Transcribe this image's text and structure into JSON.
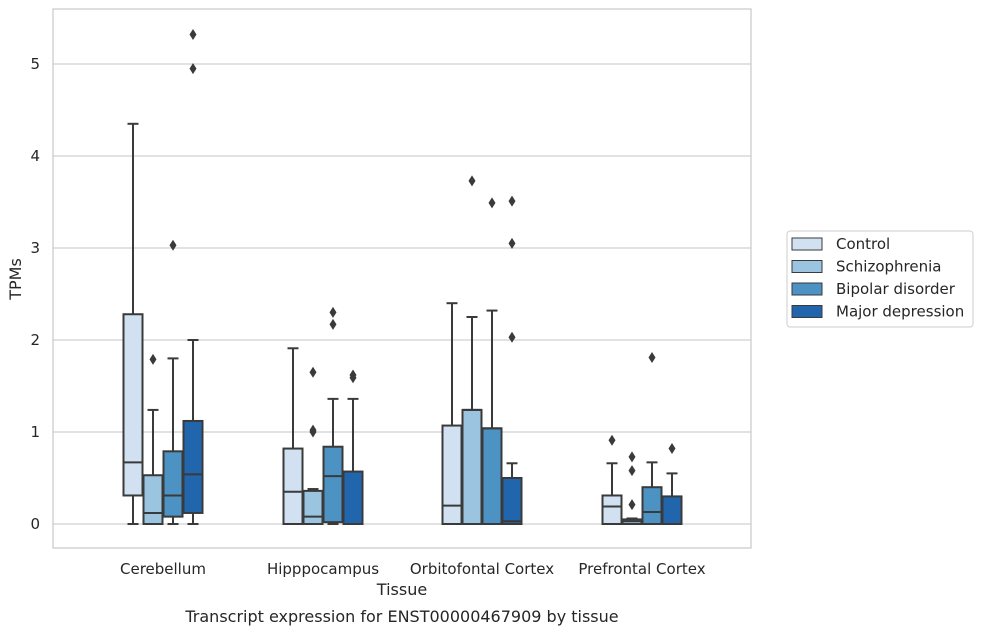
{
  "caption": "Transcript expression for ENST00000467909 by tissue",
  "colors": {
    "Control": "#d2e1f1",
    "Schizophrenia": "#9ac4df",
    "Bipolar disorder": "#4c92c3",
    "Major depression": "#2166ac",
    "line": "#3a3a3a",
    "grid": "#d0d0d0",
    "frame": "#c8c8c8"
  },
  "chart_data": {
    "type": "box",
    "xlabel": "Tissue",
    "ylabel": "TPMs",
    "ylim": [
      -0.25,
      5.6
    ],
    "yticks": [
      0,
      1,
      2,
      3,
      4,
      5
    ],
    "grid": "horizontal",
    "legend_position": "right",
    "categories": [
      "Cerebellum",
      "Hipppocampus",
      "Orbitofontal Cortex",
      "Prefrontal Cortex"
    ],
    "series": [
      {
        "name": "Control",
        "boxes": [
          {
            "whisker_low": 0,
            "q1": 0.31,
            "median": 0.67,
            "q3": 2.28,
            "whisker_high": 4.35,
            "outliers": []
          },
          {
            "whisker_low": 0,
            "q1": 0,
            "median": 0.35,
            "q3": 0.82,
            "whisker_high": 1.91,
            "outliers": []
          },
          {
            "whisker_low": 0,
            "q1": 0,
            "median": 0.2,
            "q3": 1.07,
            "whisker_high": 2.4,
            "outliers": []
          },
          {
            "whisker_low": 0,
            "q1": 0,
            "median": 0.19,
            "q3": 0.31,
            "whisker_high": 0.66,
            "outliers": [
              0.91
            ]
          }
        ]
      },
      {
        "name": "Schizophrenia",
        "boxes": [
          {
            "whisker_low": 0,
            "q1": 0,
            "median": 0.12,
            "q3": 0.53,
            "whisker_high": 1.24,
            "outliers": [
              1.79
            ]
          },
          {
            "whisker_low": 0,
            "q1": 0,
            "median": 0.08,
            "q3": 0.36,
            "whisker_high": 0.38,
            "outliers": [
              1.0,
              1.02,
              1.65
            ]
          },
          {
            "whisker_low": 0,
            "q1": 0,
            "median": 1.24,
            "q3": 1.24,
            "whisker_high": 2.25,
            "outliers": [
              3.73
            ]
          },
          {
            "whisker_low": 0,
            "q1": 0,
            "median": 0.03,
            "q3": 0.05,
            "whisker_high": 0.06,
            "outliers": [
              0.21,
              0.58,
              0.73
            ]
          }
        ]
      },
      {
        "name": "Bipolar disorder",
        "boxes": [
          {
            "whisker_low": 0,
            "q1": 0.08,
            "median": 0.31,
            "q3": 0.79,
            "whisker_high": 1.8,
            "outliers": [
              3.03
            ]
          },
          {
            "whisker_low": 0,
            "q1": 0.02,
            "median": 0.52,
            "q3": 0.84,
            "whisker_high": 1.36,
            "outliers": [
              2.17,
              2.3
            ]
          },
          {
            "whisker_low": 0,
            "q1": 0,
            "median": 1.04,
            "q3": 1.04,
            "whisker_high": 2.32,
            "outliers": [
              3.49
            ]
          },
          {
            "whisker_low": 0,
            "q1": 0,
            "median": 0.13,
            "q3": 0.4,
            "whisker_high": 0.67,
            "outliers": [
              1.81
            ]
          }
        ]
      },
      {
        "name": "Major depression",
        "boxes": [
          {
            "whisker_low": 0,
            "q1": 0.12,
            "median": 0.54,
            "q3": 1.12,
            "whisker_high": 2.0,
            "outliers": [
              4.95,
              5.32
            ]
          },
          {
            "whisker_low": 0,
            "q1": 0,
            "median": 0,
            "q3": 0.57,
            "whisker_high": 1.36,
            "outliers": [
              1.59,
              1.62
            ]
          },
          {
            "whisker_low": 0,
            "q1": 0,
            "median": 0.03,
            "q3": 0.5,
            "whisker_high": 0.66,
            "outliers": [
              2.03,
              3.05,
              3.51
            ]
          },
          {
            "whisker_low": 0,
            "q1": 0,
            "median": 0,
            "q3": 0.3,
            "whisker_high": 0.55,
            "outliers": [
              0.82
            ]
          }
        ]
      }
    ]
  }
}
